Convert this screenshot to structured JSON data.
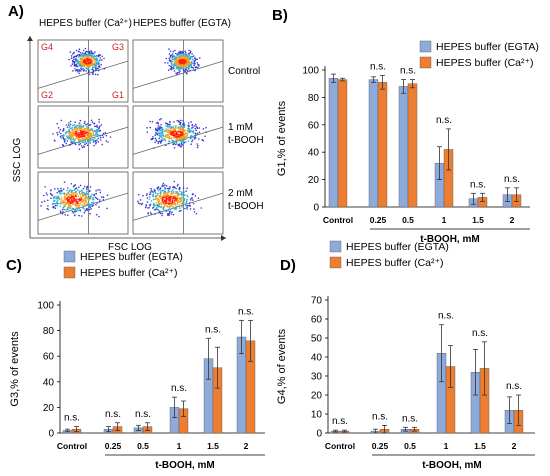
{
  "panel_a": {
    "label": "A)",
    "col_headers": [
      "HEPES buffer (Ca²⁺)",
      "HEPES buffer (EGTA)"
    ],
    "row_labels": [
      [
        "Control"
      ],
      [
        "1 mM",
        "t-BOOH"
      ],
      [
        "2 mM",
        "t-BOOH"
      ]
    ],
    "gate_labels": [
      "G4",
      "G3",
      "G2",
      "G1"
    ],
    "ylabel": "SSC  LOG",
    "xlabel": "FSC  LOG",
    "colors": {
      "gate_label": "#cc2222",
      "density_low": "#3a3ad0",
      "density_high": "#ff2200"
    }
  },
  "chart_data": [
    {
      "panel": "B)",
      "type": "bar",
      "ylabel": "G1,% of events",
      "xlabel": "t-BOOH, mM",
      "categories": [
        "Control",
        "0.25",
        "0.5",
        "1",
        "1.5",
        "2"
      ],
      "ylim": [
        0,
        100
      ],
      "yticks": [
        0,
        20,
        40,
        60,
        80,
        100
      ],
      "annotations": [
        "",
        "n.s.",
        "n.s.",
        "n.s.",
        "n.s.",
        "n.s."
      ],
      "legend": "top-right",
      "series": [
        {
          "name": "HEPES buffer (EGTA)",
          "color": "#8eaadb",
          "values": [
            94,
            93,
            88,
            32,
            6,
            9
          ],
          "errors": [
            3,
            2,
            5,
            12,
            4,
            5
          ]
        },
        {
          "name": "HEPES buffer (Ca²⁺)",
          "color": "#ed7d31",
          "values": [
            93,
            91,
            90,
            42,
            7,
            9
          ],
          "errors": [
            1,
            5,
            3,
            15,
            3,
            5
          ]
        }
      ]
    },
    {
      "panel": "C)",
      "type": "bar",
      "ylabel": "G3,% of events",
      "xlabel": "t-BOOH, mM",
      "categories": [
        "Control",
        "0.25",
        "0.5",
        "1",
        "1.5",
        "2"
      ],
      "ylim": [
        0,
        100
      ],
      "yticks": [
        0,
        20,
        40,
        60,
        80,
        100
      ],
      "annotations": [
        "n.s.",
        "n.s.",
        "n.s.",
        "n.s.",
        "n.s.",
        "n.s."
      ],
      "legend": "top-left",
      "series": [
        {
          "name": "HEPES buffer (EGTA)",
          "color": "#8eaadb",
          "values": [
            2,
            3,
            4,
            20,
            58,
            75
          ],
          "errors": [
            1,
            2,
            2,
            8,
            16,
            13
          ]
        },
        {
          "name": "HEPES buffer (Ca²⁺)",
          "color": "#ed7d31",
          "values": [
            3,
            5,
            5,
            19,
            51,
            72
          ],
          "errors": [
            2,
            3,
            3,
            6,
            16,
            16
          ]
        }
      ]
    },
    {
      "panel": "D)",
      "type": "bar",
      "ylabel": "G4,% of events",
      "xlabel": "t-BOOH, mM",
      "categories": [
        "Control",
        "0.25",
        "0.5",
        "1",
        "1.5",
        "2"
      ],
      "ylim": [
        0,
        70
      ],
      "yticks": [
        0,
        10,
        20,
        30,
        40,
        50,
        60,
        70
      ],
      "annotations": [
        "n.s.",
        "n.s.",
        "n.s.",
        "n.s.",
        "n.s.",
        "n.s."
      ],
      "legend": "top-left",
      "series": [
        {
          "name": "HEPES buffer (EGTA)",
          "color": "#8eaadb",
          "values": [
            1,
            1,
            2,
            42,
            32,
            12
          ],
          "errors": [
            0.5,
            1,
            1,
            15,
            12,
            7
          ]
        },
        {
          "name": "HEPES buffer (Ca²⁺)",
          "color": "#ed7d31",
          "values": [
            1,
            2,
            2,
            35,
            34,
            12
          ],
          "errors": [
            0.5,
            2,
            1,
            11,
            14,
            8
          ]
        }
      ]
    }
  ]
}
